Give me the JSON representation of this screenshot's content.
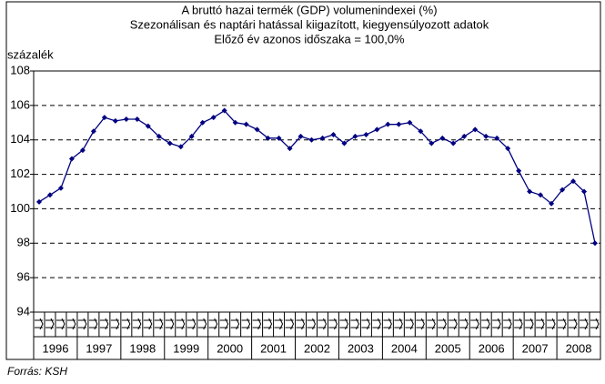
{
  "chart_data": {
    "type": "line",
    "title": "A bruttó hazai termék (GDP) volumenindexei (%)",
    "subtitle": "Szezonálisan és naptári hatással kiigazított, kiegyensúlyozott adatok",
    "note": "Előző év azonos időszaka = 100,0%",
    "y_label": "százalék",
    "source": "Forrás: KSH",
    "groups": [
      "1996",
      "1997",
      "1998",
      "1999",
      "2000",
      "2001",
      "2002",
      "2003",
      "2004",
      "2005",
      "2006",
      "2007",
      "2008"
    ],
    "categories": [
      null,
      null,
      null,
      null,
      null,
      null,
      null,
      null,
      null,
      null,
      null,
      null,
      null,
      null,
      null,
      null,
      null,
      null,
      null,
      null,
      null,
      null,
      null,
      null,
      null,
      null,
      null,
      null,
      null,
      null,
      null,
      null,
      null,
      null,
      null,
      null,
      null,
      null,
      null,
      null,
      null,
      null,
      null,
      null,
      null,
      null,
      null,
      null,
      null,
      null,
      null,
      null
    ],
    "series": [
      {
        "name": null,
        "color": "#000080",
        "values": [
          100.4,
          100.8,
          101.2,
          102.9,
          103.4,
          104.5,
          105.3,
          105.1,
          105.2,
          105.2,
          104.8,
          104.2,
          103.8,
          103.6,
          104.2,
          105.0,
          105.3,
          105.7,
          105.0,
          104.9,
          104.6,
          104.1,
          104.1,
          103.5,
          104.2,
          104.0,
          104.1,
          104.3,
          103.8,
          104.2,
          104.3,
          104.6,
          104.9,
          104.9,
          105.0,
          104.5,
          103.8,
          104.1,
          103.8,
          104.2,
          104.6,
          104.2,
          104.1,
          103.5,
          102.2,
          101.0,
          100.8,
          100.3,
          101.1,
          101.6,
          101.0,
          98.0
        ]
      }
    ],
    "ylim": [
      94,
      108
    ],
    "yticks": [
      94,
      96,
      98,
      100,
      102,
      104,
      106,
      108
    ],
    "grid": true
  }
}
